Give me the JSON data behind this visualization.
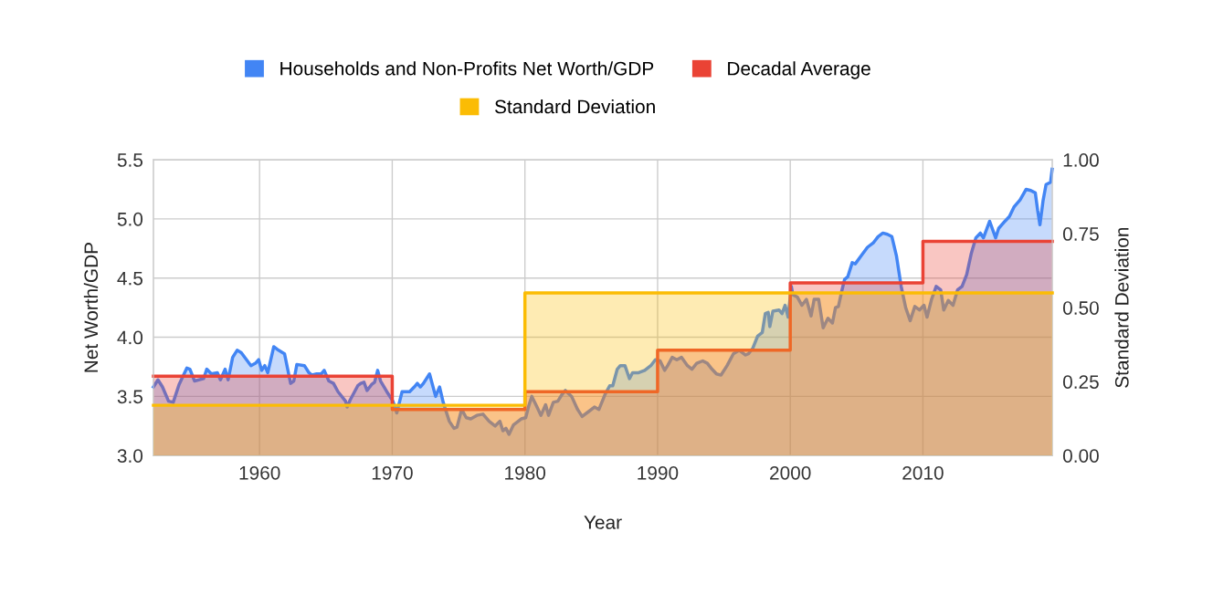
{
  "chart_data": {
    "type": "area",
    "xlabel": "Year",
    "ylabel": "Net Worth/GDP",
    "y2label": "Standard Deviation",
    "xlim": [
      1952,
      2019.75
    ],
    "xticks": [
      1960,
      1970,
      1980,
      1990,
      2000,
      2010
    ],
    "ylim": [
      3.0,
      5.5
    ],
    "yticks": [
      {
        "value": 3.0,
        "label": "3.0"
      },
      {
        "value": 3.5,
        "label": "3.5"
      },
      {
        "value": 4.0,
        "label": "4.0"
      },
      {
        "value": 4.5,
        "label": "4.5"
      },
      {
        "value": 5.0,
        "label": "5.0"
      },
      {
        "value": 5.5,
        "label": "5.5"
      }
    ],
    "y2lim": [
      0,
      1
    ],
    "y2ticks": [
      {
        "value": 0,
        "label": "0.00"
      },
      {
        "value": 0.25,
        "label": "0.25"
      },
      {
        "value": 0.5,
        "label": "0.50"
      },
      {
        "value": 0.75,
        "label": "0.75"
      },
      {
        "value": 1,
        "label": "1.00"
      }
    ],
    "grid": true,
    "legend": "top",
    "series": [
      {
        "name": "Households and Non-Profits Net Worth/GDP",
        "color": "#4285f4",
        "x": [
          1952.0,
          1952.34,
          1952.68,
          1953.14,
          1953.49,
          1953.93,
          1954.52,
          1954.75,
          1955.1,
          1955.78,
          1956.02,
          1956.36,
          1956.82,
          1957.05,
          1957.4,
          1957.63,
          1957.97,
          1958.31,
          1958.62,
          1959.35,
          1959.69,
          1959.93,
          1960.16,
          1960.39,
          1960.62,
          1961.07,
          1961.43,
          1961.88,
          1962.34,
          1962.58,
          1962.81,
          1963.38,
          1963.72,
          1963.95,
          1964.3,
          1964.64,
          1964.87,
          1965.22,
          1965.57,
          1965.91,
          1966.48,
          1966.6,
          1966.83,
          1967.4,
          1967.63,
          1967.87,
          1968.1,
          1968.44,
          1968.67,
          1968.9,
          1969.12,
          1969.59,
          1970.05,
          1970.34,
          1970.74,
          1971.31,
          1971.66,
          1971.89,
          1972.12,
          1972.35,
          1972.81,
          1973.27,
          1973.57,
          1973.84,
          1974.3,
          1974.65,
          1974.88,
          1975.23,
          1975.58,
          1975.92,
          1976.38,
          1976.84,
          1977.3,
          1977.76,
          1978.11,
          1978.34,
          1978.57,
          1978.8,
          1979.14,
          1979.72,
          1980.06,
          1980.29,
          1980.52,
          1980.87,
          1981.21,
          1981.56,
          1981.78,
          1982.14,
          1982.48,
          1982.82,
          1983.05,
          1983.52,
          1983.97,
          1984.31,
          1984.78,
          1985.24,
          1985.58,
          1986.05,
          1986.39,
          1986.62,
          1986.96,
          1987.19,
          1987.54,
          1987.88,
          1988.11,
          1988.57,
          1989.03,
          1989.49,
          1989.83,
          1990.19,
          1990.53,
          1990.76,
          1991.1,
          1991.45,
          1991.8,
          1992.25,
          1992.59,
          1992.95,
          1993.4,
          1993.75,
          1994.1,
          1994.44,
          1994.78,
          1995.24,
          1995.71,
          1996.16,
          1996.63,
          1996.85,
          1997.19,
          1997.54,
          1997.89,
          1998.12,
          1998.34,
          1998.46,
          1998.69,
          1999.15,
          1999.38,
          1999.61,
          1999.84,
          2000.08,
          2000.19,
          2000.53,
          2000.88,
          2001.22,
          2001.57,
          2001.8,
          2002.14,
          2002.48,
          2002.84,
          2003.18,
          2003.41,
          2003.63,
          2003.86,
          2004.1,
          2004.33,
          2004.67,
          2004.9,
          2005.36,
          2005.82,
          2006.28,
          2006.62,
          2006.98,
          2007.32,
          2007.66,
          2008.0,
          2008.36,
          2008.7,
          2009.04,
          2009.39,
          2009.74,
          2010.08,
          2010.31,
          2010.65,
          2011.0,
          2011.34,
          2011.57,
          2011.91,
          2012.27,
          2012.61,
          2012.95,
          2013.3,
          2013.65,
          2013.99,
          2014.33,
          2014.56,
          2015.03,
          2015.48,
          2015.71,
          2016.18,
          2016.52,
          2016.86,
          2017.32,
          2017.78,
          2018.13,
          2018.47,
          2018.65,
          2018.82,
          2019.05,
          2019.28,
          2019.62,
          2019.74
        ],
        "values": [
          3.58,
          3.64,
          3.58,
          3.46,
          3.45,
          3.6,
          3.74,
          3.73,
          3.63,
          3.65,
          3.73,
          3.69,
          3.7,
          3.64,
          3.73,
          3.64,
          3.83,
          3.89,
          3.87,
          3.76,
          3.78,
          3.81,
          3.72,
          3.76,
          3.7,
          3.92,
          3.89,
          3.86,
          3.61,
          3.63,
          3.77,
          3.76,
          3.7,
          3.68,
          3.69,
          3.69,
          3.72,
          3.63,
          3.61,
          3.54,
          3.46,
          3.41,
          3.47,
          3.59,
          3.61,
          3.62,
          3.55,
          3.6,
          3.62,
          3.72,
          3.63,
          3.54,
          3.46,
          3.36,
          3.54,
          3.54,
          3.58,
          3.61,
          3.58,
          3.61,
          3.69,
          3.5,
          3.58,
          3.45,
          3.29,
          3.23,
          3.24,
          3.39,
          3.32,
          3.31,
          3.34,
          3.35,
          3.29,
          3.25,
          3.29,
          3.21,
          3.23,
          3.18,
          3.26,
          3.31,
          3.32,
          3.42,
          3.5,
          3.42,
          3.34,
          3.43,
          3.34,
          3.45,
          3.46,
          3.52,
          3.55,
          3.5,
          3.39,
          3.33,
          3.37,
          3.41,
          3.39,
          3.52,
          3.59,
          3.59,
          3.73,
          3.76,
          3.76,
          3.65,
          3.7,
          3.7,
          3.72,
          3.76,
          3.81,
          3.8,
          3.72,
          3.76,
          3.83,
          3.81,
          3.83,
          3.76,
          3.73,
          3.78,
          3.8,
          3.78,
          3.73,
          3.69,
          3.68,
          3.76,
          3.86,
          3.89,
          3.85,
          3.86,
          3.91,
          4.01,
          4.04,
          4.2,
          4.21,
          4.09,
          4.22,
          4.23,
          4.2,
          4.27,
          4.17,
          4.43,
          4.36,
          4.34,
          4.27,
          4.32,
          4.18,
          4.32,
          4.32,
          4.08,
          4.16,
          4.12,
          4.25,
          4.26,
          4.38,
          4.49,
          4.51,
          4.63,
          4.62,
          4.69,
          4.76,
          4.8,
          4.85,
          4.88,
          4.87,
          4.85,
          4.69,
          4.43,
          4.25,
          4.14,
          4.26,
          4.23,
          4.27,
          4.17,
          4.32,
          4.43,
          4.4,
          4.23,
          4.31,
          4.27,
          4.4,
          4.43,
          4.53,
          4.71,
          4.84,
          4.88,
          4.84,
          4.98,
          4.84,
          4.92,
          4.98,
          5.02,
          5.1,
          5.16,
          5.25,
          5.24,
          5.22,
          5.07,
          4.95,
          5.15,
          5.29,
          5.31,
          5.42
        ]
      },
      {
        "name": "Decadal Average",
        "color": "#ea4335",
        "x": [
          1952,
          1970,
          1970,
          1980,
          1980,
          1990,
          1990,
          2000,
          2000,
          2010,
          2010,
          2019.75
        ],
        "values": [
          3.67,
          3.67,
          3.39,
          3.39,
          3.54,
          3.54,
          3.89,
          3.89,
          4.46,
          4.46,
          4.81,
          4.81
        ]
      },
      {
        "name": "Standard Deviation",
        "axis": "y2",
        "color": "#fbbc04",
        "x": [
          1952,
          1980,
          1980,
          2019.75
        ],
        "values": [
          0.17,
          0.17,
          0.55,
          0.55
        ]
      }
    ]
  }
}
